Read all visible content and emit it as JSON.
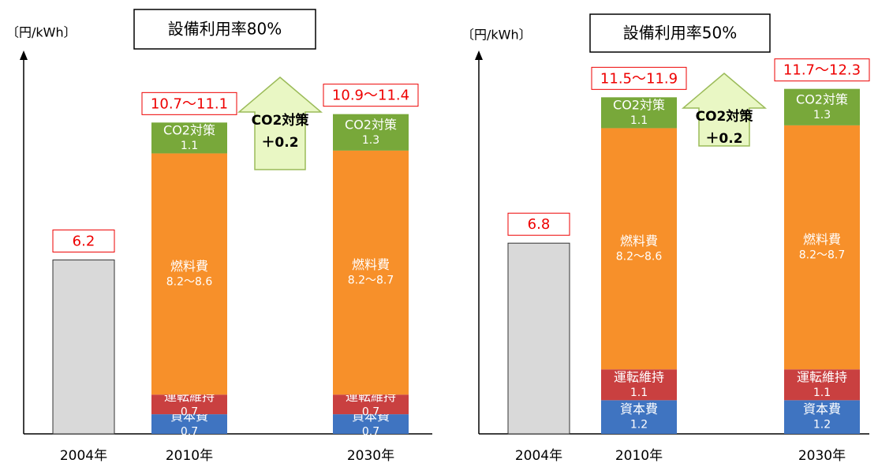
{
  "chart_data": [
    {
      "type": "bar",
      "stacked": true,
      "title": "設備利用率80%",
      "ylabel": "〔円/kWh〕",
      "categories": [
        "2004年",
        "2010年",
        "2030年"
      ],
      "ylim": [
        0,
        13.5
      ],
      "series": [
        {
          "color": "#d9d9d9",
          "values": [
            6.2,
            null,
            null
          ]
        },
        {
          "name": "資本費",
          "color": "#3f74c1",
          "values": [
            null,
            0.7,
            0.7
          ]
        },
        {
          "name": "運転維持",
          "color": "#c94040",
          "values": [
            null,
            0.7,
            0.7
          ]
        },
        {
          "name": "燃料費",
          "color": "#f7902a",
          "values": [
            null,
            8.6,
            8.7
          ],
          "value_labels": [
            null,
            "8.2〜8.6",
            "8.2〜8.7"
          ]
        },
        {
          "name": "CO2対策",
          "color": "#78a83a",
          "values": [
            null,
            1.1,
            1.3
          ]
        }
      ],
      "total_labels": [
        null,
        "10.7〜11.1",
        "10.9〜11.4"
      ],
      "annotation": [
        "CO2対策",
        "＋0.2"
      ]
    },
    {
      "type": "bar",
      "stacked": true,
      "title": "設備利用率50%",
      "ylabel": "〔円/kWh〕",
      "categories": [
        "2004年",
        "2010年",
        "2030年"
      ],
      "ylim": [
        0,
        13.5
      ],
      "series": [
        {
          "color": "#d9d9d9",
          "values": [
            6.8,
            null,
            null
          ]
        },
        {
          "name": "資本費",
          "color": "#3f74c1",
          "values": [
            null,
            1.2,
            1.2
          ]
        },
        {
          "name": "運転維持",
          "color": "#c94040",
          "values": [
            null,
            1.1,
            1.1
          ]
        },
        {
          "name": "燃料費",
          "color": "#f7902a",
          "values": [
            null,
            8.6,
            8.7
          ],
          "value_labels": [
            null,
            "8.2〜8.6",
            "8.2〜8.7"
          ]
        },
        {
          "name": "CO2対策",
          "color": "#78a83a",
          "values": [
            null,
            1.1,
            1.3
          ]
        }
      ],
      "total_labels": [
        null,
        "11.5〜11.9",
        "11.7〜12.3"
      ],
      "annotation": [
        "CO2対策",
        "＋0.2"
      ]
    }
  ]
}
